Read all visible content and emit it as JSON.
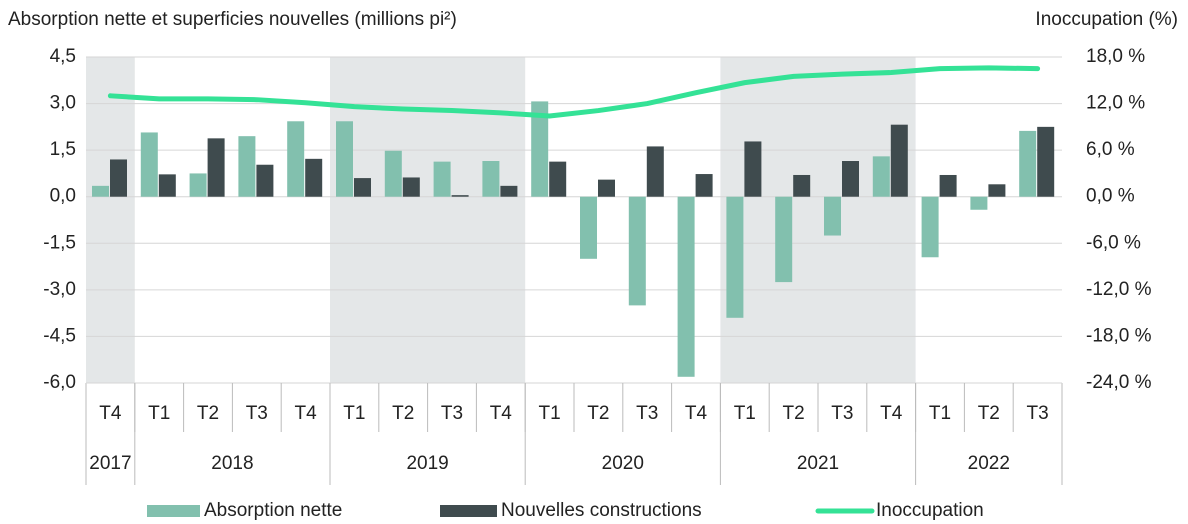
{
  "chart_data": {
    "type": "bar-line",
    "ylabel": "Absorption nette et superficies nouvelles (millions pi²)",
    "y2label": "Inoccupation (%)",
    "categories": [
      "T4",
      "T1",
      "T2",
      "T3",
      "T4",
      "T1",
      "T2",
      "T3",
      "T4",
      "T1",
      "T2",
      "T3",
      "T4",
      "T1",
      "T2",
      "T3",
      "T4",
      "T1",
      "T2",
      "T3"
    ],
    "groups": [
      {
        "name": "2017",
        "span": 1
      },
      {
        "name": "2018",
        "span": 4
      },
      {
        "name": "2019",
        "span": 4
      },
      {
        "name": "2020",
        "span": 4
      },
      {
        "name": "2021",
        "span": 4
      },
      {
        "name": "2022",
        "span": 3
      }
    ],
    "series": [
      {
        "name": "Absorption nette",
        "color": "#82c0ae",
        "kind": "bar",
        "values": [
          0.35,
          2.07,
          0.75,
          1.95,
          2.43,
          2.43,
          1.48,
          1.13,
          1.15,
          3.07,
          -2.0,
          -3.5,
          -5.8,
          -3.9,
          -2.75,
          -1.25,
          1.3,
          -1.95,
          -0.42,
          2.12
        ]
      },
      {
        "name": "Nouvelles constructions",
        "color": "#3f4b4e",
        "kind": "bar",
        "values": [
          1.2,
          0.72,
          1.88,
          1.03,
          1.22,
          0.6,
          0.62,
          0.05,
          0.35,
          1.13,
          0.55,
          1.62,
          0.73,
          1.78,
          0.7,
          1.15,
          2.32,
          0.7,
          0.4,
          2.25
        ]
      },
      {
        "name": "Inoccupation",
        "color": "#34e296",
        "kind": "line",
        "axis": "y2",
        "values": [
          13.0,
          12.6,
          12.6,
          12.5,
          12.1,
          11.6,
          11.3,
          11.1,
          10.8,
          10.4,
          11.1,
          12.0,
          13.4,
          14.7,
          15.5,
          15.8,
          16.0,
          16.5,
          16.6,
          16.5
        ]
      }
    ],
    "ylim": [
      -6,
      4.5
    ],
    "yticks": [
      {
        "value": 4.5,
        "label": "4,5"
      },
      {
        "value": 3,
        "label": "3,0"
      },
      {
        "value": 1.5,
        "label": "1,5"
      },
      {
        "value": 0,
        "label": "0,0"
      },
      {
        "value": -1.5,
        "label": "-1,5"
      },
      {
        "value": -3,
        "label": "-3,0"
      },
      {
        "value": -4.5,
        "label": "-4,5"
      },
      {
        "value": -6,
        "label": "-6,0"
      }
    ],
    "y2lim": [
      -24,
      18
    ],
    "y2ticks": [
      {
        "value": 18,
        "label": "18,0 %"
      },
      {
        "value": 12,
        "label": "12,0 %"
      },
      {
        "value": 6,
        "label": "6,0 %"
      },
      {
        "value": 0,
        "label": "0,0 %"
      },
      {
        "value": -6,
        "label": "-6,0 %"
      },
      {
        "value": -12,
        "label": "-12,0 %"
      },
      {
        "value": -18,
        "label": "-18,0 %"
      },
      {
        "value": -24,
        "label": "-24,0 %"
      }
    ],
    "grid": true,
    "legend": "bottom",
    "band_color": "#e4e7e8"
  }
}
